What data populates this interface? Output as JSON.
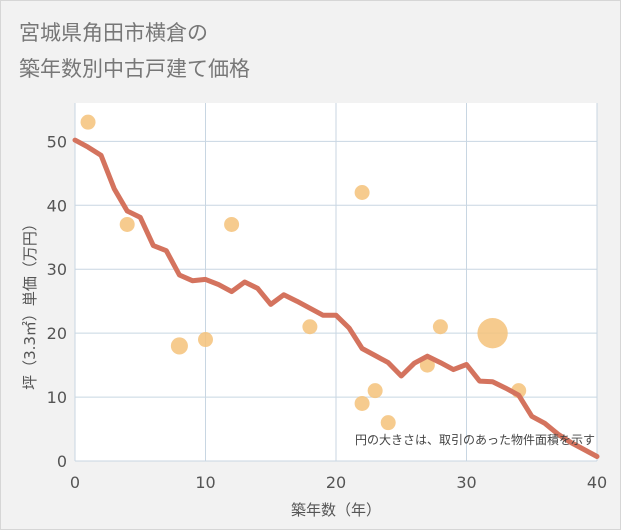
{
  "title": {
    "line1": "宮城県角田市横倉の",
    "line2": "築年数別中古戸建て価格"
  },
  "note": "円の大きさは、取引のあった物件面積を示す",
  "colors": {
    "plot_bg": "#ffffff",
    "grid": "#c8d6e2",
    "line": "#d4735e",
    "bubble": "#f5c27a"
  },
  "chart_data": {
    "type": "scatter",
    "xlabel": "築年数（年）",
    "ylabel": "坪（3.3㎡）単価（万円）",
    "xlim": [
      0,
      40
    ],
    "ylim": [
      0,
      56
    ],
    "xticks": [
      0,
      10,
      20,
      30,
      40
    ],
    "yticks": [
      0,
      10,
      20,
      30,
      40,
      50
    ],
    "grid": true,
    "trend_line": {
      "x": [
        0,
        1,
        2,
        3,
        4,
        5,
        6,
        7,
        8,
        9,
        10,
        11,
        12,
        13,
        14,
        15,
        16,
        17,
        18,
        19,
        20,
        21,
        22,
        23,
        24,
        25,
        26,
        27,
        28,
        29,
        30,
        31,
        32,
        33,
        34,
        35,
        36,
        37,
        38,
        39,
        40
      ],
      "y": [
        50.2,
        49.1,
        47.8,
        42.6,
        39.1,
        38.1,
        33.7,
        32.9,
        29.1,
        28.2,
        28.4,
        27.6,
        26.5,
        28.0,
        27.0,
        24.5,
        26.0,
        25.0,
        23.9,
        22.8,
        22.8,
        20.8,
        17.6,
        16.5,
        15.4,
        13.3,
        15.3,
        16.4,
        15.4,
        14.3,
        15.1,
        12.5,
        12.4,
        11.4,
        10.3,
        7.0,
        5.9,
        4.2,
        2.9,
        1.8,
        0.7
      ]
    },
    "points": [
      {
        "x": 1,
        "y": 53,
        "size": 1
      },
      {
        "x": 4,
        "y": 37,
        "size": 1
      },
      {
        "x": 8,
        "y": 18,
        "size": 1.3
      },
      {
        "x": 10,
        "y": 19,
        "size": 1
      },
      {
        "x": 12,
        "y": 37,
        "size": 1
      },
      {
        "x": 18,
        "y": 21,
        "size": 1
      },
      {
        "x": 22,
        "y": 42,
        "size": 1
      },
      {
        "x": 22,
        "y": 9,
        "size": 1
      },
      {
        "x": 23,
        "y": 11,
        "size": 1
      },
      {
        "x": 24,
        "y": 6,
        "size": 1
      },
      {
        "x": 27,
        "y": 15,
        "size": 1
      },
      {
        "x": 28,
        "y": 21,
        "size": 1
      },
      {
        "x": 32,
        "y": 20,
        "size": 4.1
      },
      {
        "x": 34,
        "y": 11,
        "size": 1
      }
    ]
  }
}
